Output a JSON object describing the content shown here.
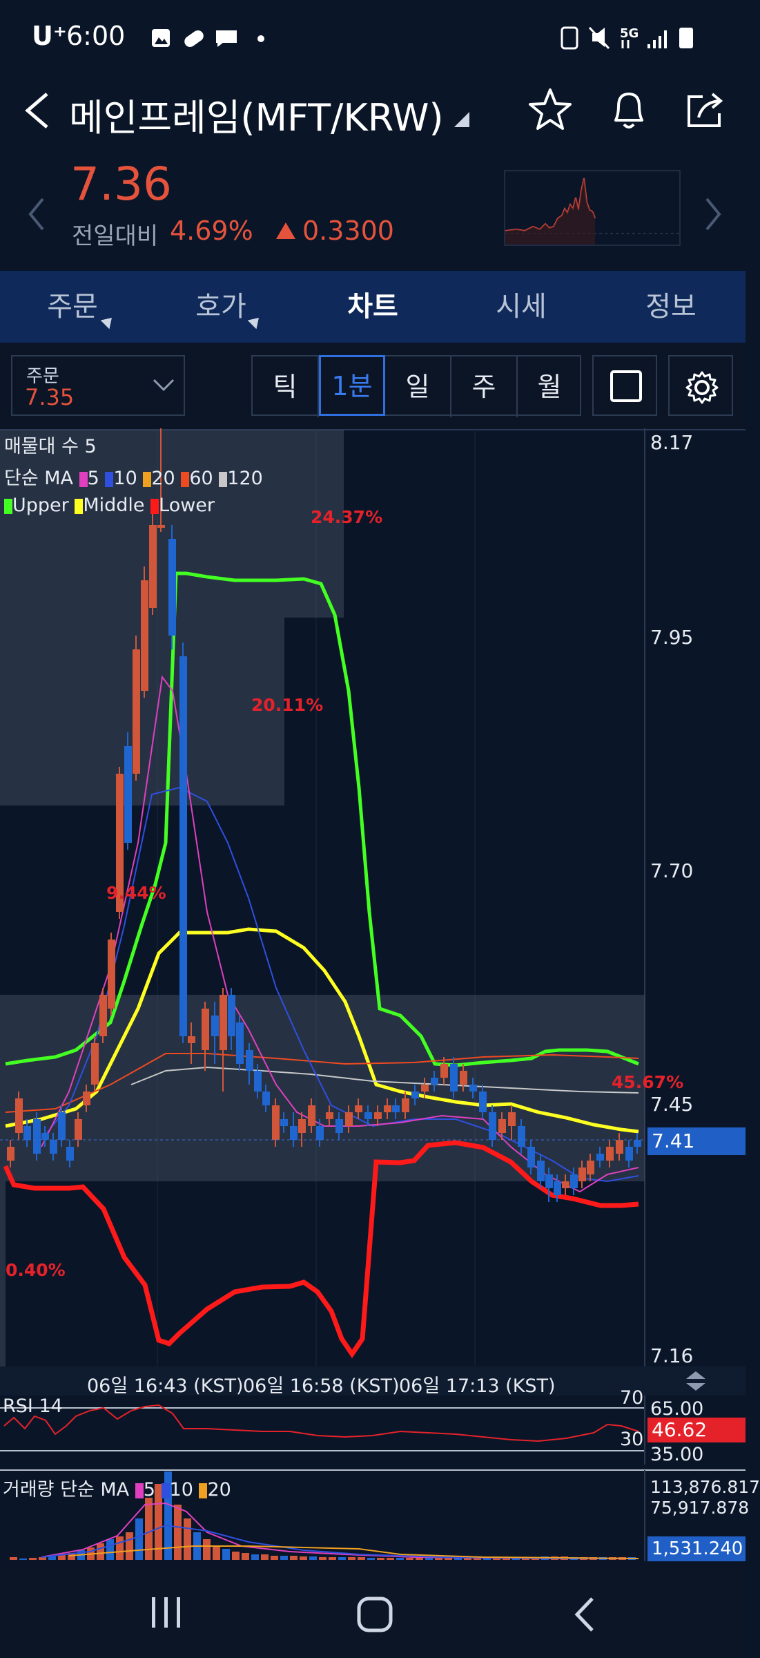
{
  "status": {
    "carrier": "U⁺",
    "time": "6:00",
    "network": "5G"
  },
  "header": {
    "title": "메인프레임(MFT/KRW)",
    "price": "7.36",
    "change_label": "전일대비",
    "change_pct": "4.69%",
    "change_abs": "0.3300",
    "accent_color": "#e5533c"
  },
  "tabs": [
    {
      "label": "주문"
    },
    {
      "label": "호가"
    },
    {
      "label": "차트"
    },
    {
      "label": "시세"
    },
    {
      "label": "정보"
    }
  ],
  "toolbar": {
    "order_label": "주문",
    "order_value": "7.35",
    "periods": [
      "틱",
      "1분",
      "일",
      "주",
      "월"
    ],
    "selected_period": "1분"
  },
  "chart": {
    "legend_volume_profile": "매물대 수 5",
    "legend_ma_label": "단순 MA",
    "ma_periods": [
      {
        "label": "5",
        "color": "#e040c0"
      },
      {
        "label": "10",
        "color": "#2f4fe0"
      },
      {
        "label": "20",
        "color": "#f0a020"
      },
      {
        "label": "60",
        "color": "#f04a20"
      },
      {
        "label": "120",
        "color": "#c8c8c8"
      }
    ],
    "bollinger": [
      {
        "label": "Upper",
        "color": "#44ff22"
      },
      {
        "label": "Middle",
        "color": "#ffff22"
      },
      {
        "label": "Lower",
        "color": "#ff1a1a"
      }
    ],
    "price_ticks": [
      "8.17",
      "7.95",
      "7.70",
      "7.45",
      "7.16"
    ],
    "current_price": "7.41",
    "profile_percents": [
      "24.37%",
      "20.11%",
      "9.44%",
      "45.67%",
      "0.40%"
    ],
    "time_labels": [
      "06일 16:43 (KST)",
      "06일 16:58 (KST)",
      "06일 17:13 (KST)"
    ]
  },
  "rsi": {
    "label": "RSI 14",
    "upper": "70",
    "lower": "30",
    "tick_top": "65.00",
    "tick_bottom": "35.00",
    "current": "46.62"
  },
  "volume": {
    "label": "거래량 단순 MA",
    "ma_periods": [
      {
        "label": "5",
        "color": "#e040c0"
      },
      {
        "label": "10",
        "color": "#2f4fe0"
      },
      {
        "label": "20",
        "color": "#f0a020"
      }
    ],
    "ticks": [
      "113,876.817",
      "75,917.878"
    ],
    "current": "1,531.240"
  }
}
